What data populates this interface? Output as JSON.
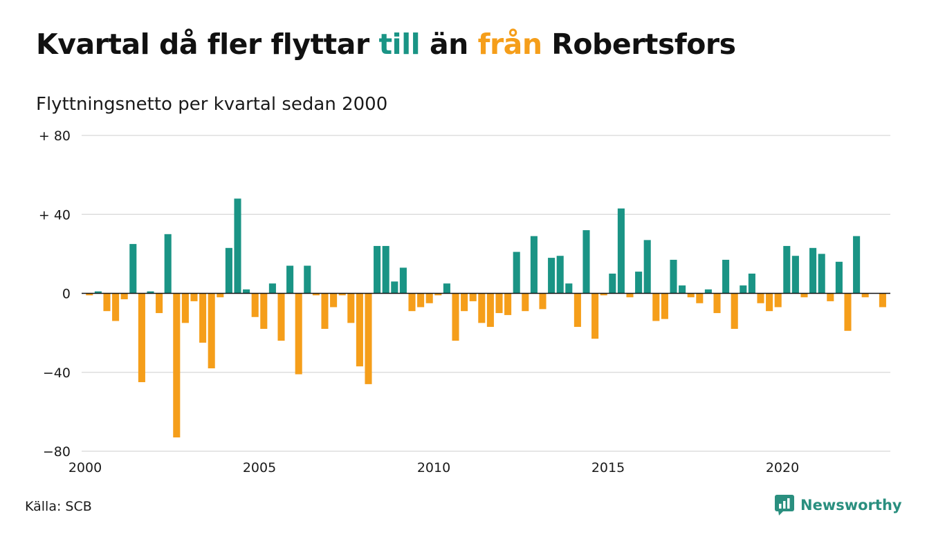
{
  "title": {
    "part1": "Kvartal då fler flyttar ",
    "till": "till",
    "part2": " än ",
    "fran": "från",
    "part3": " Robertsfors"
  },
  "subtitle": "Flyttningsnetto per kvartal sedan 2000",
  "source": "Källa: SCB",
  "brand": "Newsworthy",
  "colors": {
    "positive": "#1a9485",
    "negative": "#f59e1a",
    "brand": "#2a8f7f",
    "grid": "#dddddd"
  },
  "icons": {
    "logo": "newsworthy-logo-icon"
  },
  "chart_data": {
    "type": "bar",
    "x_start": "2000",
    "x_ticks": [
      "2000",
      "2005",
      "2010",
      "2015",
      "2020"
    ],
    "y_ticks": [
      "+ 80",
      "+ 40",
      "0",
      "−40",
      "−80"
    ],
    "ylim": [
      -80,
      80
    ],
    "grid": true,
    "values": [
      -1,
      1,
      -9,
      -14,
      -3,
      25,
      -45,
      1,
      -10,
      30,
      -73,
      -15,
      -4,
      -25,
      -38,
      -2,
      23,
      48,
      2,
      -12,
      -18,
      5,
      -24,
      14,
      -41,
      14,
      -1,
      -18,
      -7,
      -1,
      -15,
      -37,
      -46,
      24,
      24,
      6,
      13,
      -9,
      -7,
      -5,
      -1,
      5,
      -24,
      -9,
      -4,
      -15,
      -17,
      -10,
      -11,
      21,
      -9,
      29,
      -8,
      18,
      19,
      5,
      -17,
      32,
      -23,
      -1,
      10,
      43,
      -2,
      11,
      27,
      -14,
      -13,
      17,
      4,
      -2,
      -5,
      2,
      -10,
      17,
      -18,
      4,
      10,
      -5,
      -9,
      -7,
      24,
      19,
      -2,
      23,
      20,
      -4,
      16,
      -19,
      29,
      -2,
      0,
      -7
    ]
  }
}
